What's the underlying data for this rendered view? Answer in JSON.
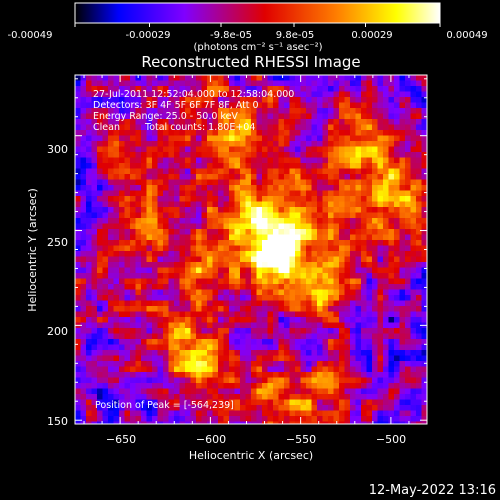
{
  "colors": {
    "background": "#000000",
    "text": "#ffffff",
    "colormap": [
      "#000000",
      "#0000ff",
      "#8000ff",
      "#e00000",
      "#ff8000",
      "#ffff00",
      "#ffffff"
    ]
  },
  "colorbar": {
    "tick_labels": [
      "-0.00049",
      "-0.00029",
      "-9.8e-05",
      "9.8e-05",
      "0.00029",
      "0.00049"
    ],
    "unit_label": "(photons cm⁻² s⁻¹ asec⁻²)",
    "range": [
      -0.00049,
      0.00049
    ]
  },
  "chart_data": {
    "type": "heatmap",
    "title": "Reconstructed RHESSI Image",
    "xlabel": "Heliocentric X (arcsec)",
    "ylabel": "Heliocentric Y (arcsec)",
    "xlim": [
      -675,
      -480
    ],
    "ylim": [
      148,
      332
    ],
    "xticks": [
      -650,
      -600,
      -550,
      -500
    ],
    "yticks": [
      150,
      200,
      250,
      300
    ],
    "xtick_labels": [
      "−650",
      "−600",
      "−550",
      "−500"
    ],
    "ytick_labels": [
      "150",
      "200",
      "250",
      "300"
    ],
    "peak": [
      -564,
      239
    ],
    "sources": [
      {
        "x": -564,
        "y": 239,
        "strength": 1.0
      },
      {
        "x": -578,
        "y": 258,
        "strength": 0.55
      },
      {
        "x": -540,
        "y": 215,
        "strength": 0.5
      },
      {
        "x": -628,
        "y": 258,
        "strength": 0.45
      },
      {
        "x": -605,
        "y": 228,
        "strength": 0.45
      },
      {
        "x": -620,
        "y": 195,
        "strength": 0.4
      },
      {
        "x": -603,
        "y": 178,
        "strength": 0.5
      },
      {
        "x": -575,
        "y": 305,
        "strength": 0.4
      },
      {
        "x": -590,
        "y": 290,
        "strength": 0.35
      },
      {
        "x": -515,
        "y": 300,
        "strength": 0.55
      },
      {
        "x": -490,
        "y": 260,
        "strength": 0.45
      },
      {
        "x": -505,
        "y": 275,
        "strength": 0.4
      },
      {
        "x": -545,
        "y": 275,
        "strength": 0.35
      },
      {
        "x": -565,
        "y": 158,
        "strength": 0.45
      },
      {
        "x": -535,
        "y": 165,
        "strength": 0.4
      },
      {
        "x": -640,
        "y": 290,
        "strength": 0.35
      },
      {
        "x": -610,
        "y": 320,
        "strength": 0.35
      },
      {
        "x": -655,
        "y": 225,
        "strength": 0.3
      },
      {
        "x": -525,
        "y": 240,
        "strength": 0.35
      }
    ]
  },
  "annotations": {
    "line1": "27-Jul-2011 12:52:04.000 to 12:58:04.000",
    "line2": "Detectors: 3F 4F 5F 6F 7F 8F, Att 0",
    "line3": "Energy Range: 25.0 - 50.0 keV",
    "line4_a": "Clean",
    "line4_b": "Total counts: 1.80E+04",
    "peak_label": "Position of Peak = [-564,239]"
  },
  "footer": {
    "timestamp": "12-May-2022 13:16"
  }
}
